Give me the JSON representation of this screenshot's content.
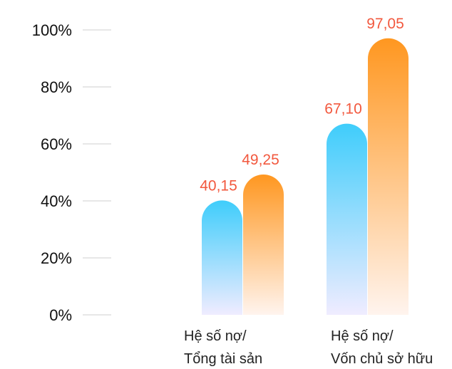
{
  "chart_data": {
    "type": "bar",
    "categories": [
      {
        "line1": "Hệ số nợ/",
        "line2": "Tổng tài sản"
      },
      {
        "line1": "Hệ số nợ/",
        "line2": "Vốn chủ sở hữu"
      }
    ],
    "series": [
      {
        "color_top": "#3fcdfb",
        "color_bottom": "#f0ecff",
        "values": [
          40.15,
          67.1
        ],
        "labels": [
          "40,15",
          "67,10"
        ]
      },
      {
        "color_top": "#ff9720",
        "color_bottom": "#fff4ee",
        "values": [
          49.25,
          97.05
        ],
        "labels": [
          "49,25",
          "97,05"
        ]
      }
    ],
    "data_label_color": "#f2583e",
    "y_ticks": [
      "0%",
      "20%",
      "40%",
      "60%",
      "80%",
      "100%"
    ],
    "ylim": [
      0,
      100
    ],
    "grid": false,
    "tick_line_color": "#cfcfcf"
  }
}
